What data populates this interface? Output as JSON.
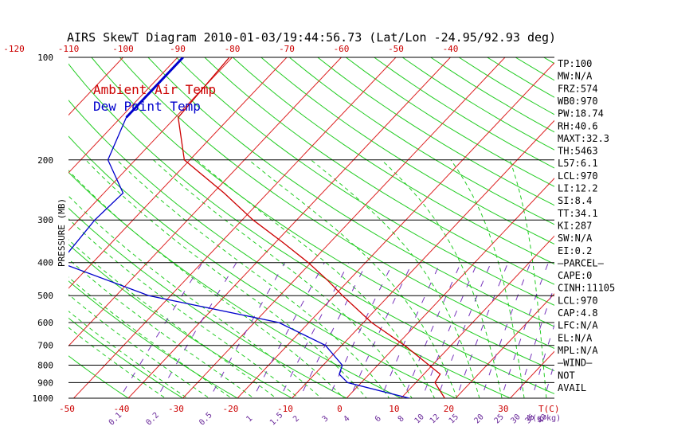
{
  "chart_data": {
    "type": "line",
    "title": "AIRS SkewT Diagram 2010-01-03/19:44:56.73 (Lat/Lon -24.95/92.93 deg)",
    "ylabel": "PRESSURE (MB)",
    "xlabel": "T(C)",
    "mixing_ratio_label": "W(g/kg)",
    "pressure_ticks": [
      "100",
      "200",
      "300",
      "400",
      "500",
      "600",
      "700",
      "800",
      "900",
      "1000"
    ],
    "top_temp_ticks": [
      "-120",
      "-110",
      "-100",
      "-90",
      "-80",
      "-70",
      "-60",
      "-50",
      "-40"
    ],
    "bottom_temp_ticks": [
      "-50",
      "-40",
      "-30",
      "-20",
      "-10",
      "0",
      "10",
      "20",
      "30"
    ],
    "mixing_ratio_ticks": [
      "0.1",
      "0.2",
      "0.5",
      "1",
      "1.5",
      "2",
      "3",
      "4",
      "6",
      "8",
      "10",
      "12",
      "15",
      "20",
      "25",
      "30",
      "35",
      "40"
    ],
    "series": [
      {
        "name": "Ambient Air Temp",
        "color": "#cc0000",
        "points": [
          {
            "p": 100,
            "t": -80.5
          },
          {
            "p": 150,
            "t": -79.5
          },
          {
            "p": 200,
            "t": -71
          },
          {
            "p": 250,
            "t": -58
          },
          {
            "p": 300,
            "t": -48
          },
          {
            "p": 350,
            "t": -38.5
          },
          {
            "p": 400,
            "t": -30.5
          },
          {
            "p": 450,
            "t": -24
          },
          {
            "p": 500,
            "t": -18.5
          },
          {
            "p": 600,
            "t": -8.5
          },
          {
            "p": 700,
            "t": 1.5
          },
          {
            "p": 850,
            "t": 13
          },
          {
            "p": 900,
            "t": 13.5
          },
          {
            "p": 1000,
            "t": 18
          }
        ]
      },
      {
        "name": "Dew Point Temp",
        "color": "#0000cc",
        "points": [
          {
            "p": 100,
            "t": -89
          },
          {
            "p": 150,
            "t": -89
          },
          {
            "p": 200,
            "t": -85
          },
          {
            "p": 250,
            "t": -76.5
          },
          {
            "p": 300,
            "t": -77
          },
          {
            "p": 400,
            "t": -76
          },
          {
            "p": 500,
            "t": -54
          },
          {
            "p": 600,
            "t": -25.5
          },
          {
            "p": 700,
            "t": -13
          },
          {
            "p": 800,
            "t": -6.5
          },
          {
            "p": 850,
            "t": -5.5
          },
          {
            "p": 900,
            "t": -2.5
          },
          {
            "p": 1000,
            "t": 11.5
          }
        ]
      }
    ],
    "side_labels": [
      "TP:100",
      "MW:N/A",
      "FRZ:574",
      "WB0:970",
      "PW:18.74",
      "RH:40.6",
      "MAXT:32.3",
      "TH:5463",
      "L57:6.1",
      "LCL:970",
      "LI:12.2",
      "SI:8.4",
      "TT:34.1",
      "KI:287",
      "SW:N/A",
      "EI:0.2",
      "—PARCEL—",
      "CAPE:0",
      "CINH:11105",
      "LCL:970",
      "CAP:4.8",
      "LFC:N/A",
      "EL:N/A",
      "MPL:N/A",
      "—WIND—",
      "NOT",
      "AVAIL"
    ],
    "legend_placement": "top-left"
  }
}
